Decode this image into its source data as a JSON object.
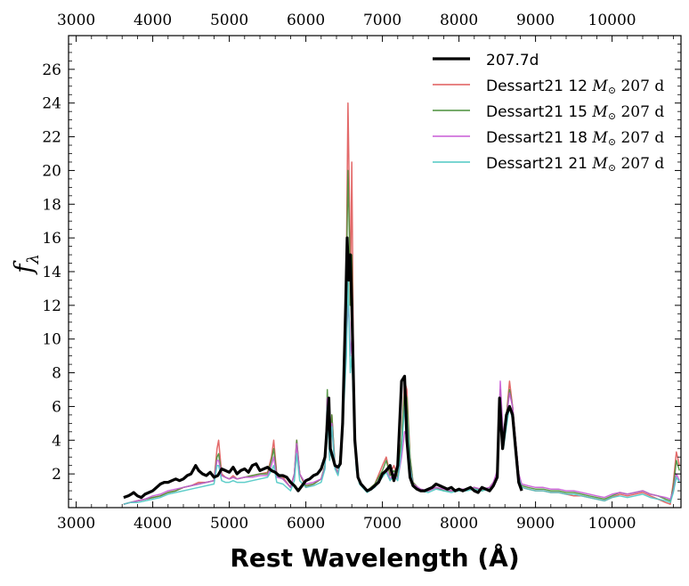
{
  "chart_data": {
    "type": "line",
    "title": "",
    "xlabel": "Rest Wavelength (Å)",
    "ylabel": "f",
    "ylabel_sub": "λ",
    "xlim": [
      2900,
      10900
    ],
    "ylim": [
      0,
      28
    ],
    "x_ticks": [
      3000,
      4000,
      5000,
      6000,
      7000,
      8000,
      9000,
      10000
    ],
    "x_tick_labels": [
      "3000",
      "4000",
      "5000",
      "6000",
      "7000",
      "8000",
      "9000",
      "10000"
    ],
    "y_ticks": [
      2,
      4,
      6,
      8,
      10,
      12,
      14,
      16,
      18,
      20,
      22,
      24,
      26
    ],
    "y_tick_labels": [
      "2",
      "4",
      "6",
      "8",
      "10",
      "12",
      "14",
      "16",
      "18",
      "20",
      "22",
      "24",
      "26"
    ],
    "legend": {
      "location": "top-right",
      "entries": [
        {
          "label": "207.7d",
          "series": "observed"
        },
        {
          "label_prefix": "Dessart21 12 ",
          "label_mass": "M",
          "label_sun": "⊙",
          "label_suffix": " 207 d",
          "series": "dessart12"
        },
        {
          "label_prefix": "Dessart21 15 ",
          "label_mass": "M",
          "label_sun": "⊙",
          "label_suffix": " 207 d",
          "series": "dessart15"
        },
        {
          "label_prefix": "Dessart21 18 ",
          "label_mass": "M",
          "label_sun": "⊙",
          "label_suffix": " 207 d",
          "series": "dessart18"
        },
        {
          "label_prefix": "Dessart21 21 ",
          "label_mass": "M",
          "label_sun": "⊙",
          "label_suffix": " 207 d",
          "series": "dessart21"
        }
      ]
    },
    "series": [
      {
        "id": "observed",
        "name": "207.7d",
        "color": "#000000",
        "width": 3.2,
        "x": [
          3620,
          3680,
          3720,
          3750,
          3800,
          3850,
          3900,
          3950,
          4000,
          4050,
          4100,
          4150,
          4200,
          4250,
          4300,
          4350,
          4400,
          4450,
          4500,
          4560,
          4600,
          4650,
          4700,
          4750,
          4800,
          4850,
          4900,
          4950,
          5000,
          5050,
          5100,
          5150,
          5200,
          5250,
          5300,
          5350,
          5400,
          5450,
          5500,
          5550,
          5600,
          5650,
          5700,
          5750,
          5800,
          5850,
          5900,
          5950,
          6000,
          6050,
          6100,
          6150,
          6200,
          6250,
          6280,
          6300,
          6320,
          6350,
          6380,
          6420,
          6450,
          6480,
          6520,
          6540,
          6560,
          6580,
          6600,
          6620,
          6640,
          6680,
          6720,
          6760,
          6800,
          6850,
          6900,
          6950,
          7000,
          7050,
          7100,
          7150,
          7200,
          7250,
          7290,
          7320,
          7360,
          7400,
          7450,
          7500,
          7550,
          7600,
          7650,
          7700,
          7750,
          7800,
          7850,
          7900,
          7950,
          8000,
          8050,
          8100,
          8150,
          8200,
          8250,
          8300,
          8350,
          8400,
          8450,
          8500,
          8530,
          8570,
          8620,
          8660,
          8700,
          8740,
          8780,
          8820
        ],
        "y": [
          0.6,
          0.7,
          0.8,
          0.9,
          0.7,
          0.6,
          0.8,
          0.9,
          1.0,
          1.2,
          1.4,
          1.5,
          1.5,
          1.6,
          1.7,
          1.6,
          1.7,
          1.9,
          2.0,
          2.5,
          2.2,
          2.0,
          1.9,
          2.1,
          1.8,
          1.9,
          2.3,
          2.2,
          2.1,
          2.4,
          2.0,
          2.2,
          2.3,
          2.1,
          2.5,
          2.6,
          2.2,
          2.3,
          2.4,
          2.2,
          2.1,
          1.9,
          1.9,
          1.8,
          1.5,
          1.3,
          1.0,
          1.3,
          1.6,
          1.7,
          1.9,
          2.0,
          2.3,
          3.0,
          5.0,
          6.5,
          3.5,
          3.0,
          2.5,
          2.4,
          2.6,
          5.0,
          12.0,
          16.0,
          13.5,
          15.0,
          12.0,
          8.0,
          4.0,
          1.8,
          1.4,
          1.2,
          1.0,
          1.1,
          1.3,
          1.5,
          2.0,
          2.2,
          2.5,
          1.6,
          2.5,
          7.5,
          7.8,
          4.0,
          1.8,
          1.3,
          1.1,
          1.0,
          1.0,
          1.1,
          1.2,
          1.4,
          1.3,
          1.2,
          1.1,
          1.2,
          1.0,
          1.1,
          1.0,
          1.1,
          1.2,
          1.0,
          0.9,
          1.2,
          1.1,
          1.0,
          1.3,
          1.8,
          6.5,
          3.5,
          5.5,
          6.0,
          5.5,
          3.5,
          1.5,
          1.0
        ]
      },
      {
        "id": "dessart12",
        "name": "Dessart21 12 M⊙ 207 d",
        "color": "#e05a5a",
        "width": 1.5,
        "x": [
          3620,
          3700,
          3800,
          3900,
          4000,
          4100,
          4200,
          4300,
          4400,
          4500,
          4600,
          4700,
          4800,
          4840,
          4860,
          4900,
          4950,
          5000,
          5050,
          5100,
          5200,
          5300,
          5400,
          5500,
          5550,
          5580,
          5620,
          5700,
          5800,
          5850,
          5880,
          5920,
          6000,
          6100,
          6200,
          6250,
          6280,
          6310,
          6340,
          6380,
          6420,
          6460,
          6500,
          6530,
          6550,
          6570,
          6580,
          6600,
          6620,
          6640,
          6660,
          6700,
          6800,
          6900,
          7000,
          7050,
          7100,
          7150,
          7200,
          7250,
          7290,
          7320,
          7360,
          7400,
          7500,
          7600,
          7700,
          7800,
          7900,
          8000,
          8100,
          8200,
          8300,
          8400,
          8450,
          8500,
          8540,
          8580,
          8620,
          8660,
          8700,
          8740,
          8780,
          8820,
          8900,
          9000,
          9100,
          9200,
          9300,
          9400,
          9500,
          9600,
          9700,
          9800,
          9900,
          10000,
          10100,
          10200,
          10300,
          10400,
          10500,
          10600,
          10700,
          10760,
          10800,
          10840,
          10880
        ],
        "y": [
          0.2,
          0.3,
          0.4,
          0.5,
          0.6,
          0.7,
          0.9,
          1.0,
          1.2,
          1.3,
          1.5,
          1.5,
          1.6,
          3.5,
          4.0,
          2.0,
          1.8,
          1.7,
          1.9,
          1.7,
          1.8,
          1.9,
          2.0,
          2.1,
          3.0,
          4.0,
          2.0,
          1.8,
          1.2,
          2.0,
          4.0,
          2.0,
          1.2,
          1.4,
          1.7,
          2.5,
          6.5,
          3.0,
          5.5,
          2.5,
          2.0,
          3.5,
          8.0,
          15.0,
          24.0,
          18.0,
          12.0,
          20.5,
          10.0,
          5.0,
          2.5,
          1.5,
          1.0,
          1.4,
          2.5,
          3.0,
          2.0,
          2.5,
          1.8,
          4.0,
          7.5,
          7.0,
          3.0,
          1.5,
          1.0,
          1.0,
          1.2,
          1.0,
          1.0,
          1.0,
          1.1,
          1.2,
          1.0,
          1.2,
          1.5,
          2.0,
          6.5,
          4.0,
          5.5,
          7.5,
          6.0,
          4.0,
          2.0,
          1.2,
          1.1,
          1.0,
          1.0,
          0.9,
          0.9,
          0.8,
          0.7,
          0.7,
          0.6,
          0.5,
          0.4,
          0.6,
          0.8,
          0.7,
          0.8,
          0.9,
          0.7,
          0.5,
          0.3,
          0.2,
          1.5,
          3.3,
          2.5
        ]
      },
      {
        "id": "dessart15",
        "name": "Dessart21 15 M⊙ 207 d",
        "color": "#4a8f3a",
        "width": 1.5,
        "x": [
          3620,
          3700,
          3800,
          3900,
          4000,
          4100,
          4200,
          4300,
          4400,
          4500,
          4600,
          4700,
          4800,
          4840,
          4860,
          4900,
          4950,
          5000,
          5050,
          5100,
          5200,
          5300,
          5400,
          5500,
          5550,
          5580,
          5620,
          5700,
          5800,
          5850,
          5880,
          5920,
          6000,
          6100,
          6200,
          6250,
          6280,
          6310,
          6340,
          6380,
          6420,
          6460,
          6500,
          6530,
          6550,
          6570,
          6580,
          6600,
          6620,
          6640,
          6660,
          6700,
          6800,
          6900,
          7000,
          7050,
          7100,
          7150,
          7200,
          7250,
          7290,
          7320,
          7360,
          7400,
          7500,
          7600,
          7700,
          7800,
          7900,
          8000,
          8100,
          8200,
          8300,
          8400,
          8450,
          8500,
          8540,
          8580,
          8620,
          8660,
          8700,
          8740,
          8780,
          8820,
          8900,
          9000,
          9100,
          9200,
          9300,
          9400,
          9500,
          9600,
          9700,
          9800,
          9900,
          10000,
          10100,
          10200,
          10300,
          10400,
          10500,
          10600,
          10700,
          10760,
          10800,
          10840,
          10880
        ],
        "y": [
          0.2,
          0.3,
          0.4,
          0.5,
          0.6,
          0.7,
          0.9,
          1.0,
          1.2,
          1.3,
          1.4,
          1.5,
          1.6,
          3.0,
          3.2,
          1.9,
          1.8,
          1.7,
          1.8,
          1.7,
          1.8,
          1.9,
          2.0,
          2.0,
          2.8,
          3.5,
          1.9,
          1.7,
          1.2,
          2.0,
          4.0,
          2.0,
          1.3,
          1.4,
          1.7,
          2.5,
          7.0,
          3.2,
          5.5,
          2.5,
          2.0,
          3.5,
          8.0,
          14.0,
          20.0,
          16.0,
          12.0,
          15.0,
          9.0,
          4.5,
          2.5,
          1.5,
          1.0,
          1.4,
          2.2,
          2.8,
          1.9,
          2.2,
          1.8,
          4.0,
          7.0,
          6.5,
          3.0,
          1.5,
          1.0,
          1.0,
          1.2,
          1.0,
          1.0,
          1.0,
          1.1,
          1.2,
          1.0,
          1.2,
          1.5,
          2.0,
          7.0,
          4.0,
          5.5,
          7.0,
          6.0,
          4.0,
          2.0,
          1.3,
          1.2,
          1.1,
          1.1,
          1.0,
          1.0,
          0.9,
          0.9,
          0.8,
          0.7,
          0.6,
          0.5,
          0.7,
          0.9,
          0.8,
          0.9,
          1.0,
          0.8,
          0.7,
          0.5,
          0.4,
          1.2,
          2.8,
          2.2
        ]
      },
      {
        "id": "dessart18",
        "name": "Dessart21 18 M⊙ 207 d",
        "color": "#c95bd6",
        "width": 1.5,
        "x": [
          3620,
          3700,
          3800,
          3900,
          4000,
          4100,
          4200,
          4300,
          4400,
          4500,
          4600,
          4700,
          4800,
          4840,
          4860,
          4900,
          4950,
          5000,
          5050,
          5100,
          5200,
          5300,
          5400,
          5500,
          5550,
          5580,
          5620,
          5700,
          5800,
          5850,
          5880,
          5920,
          6000,
          6100,
          6200,
          6250,
          6280,
          6310,
          6340,
          6380,
          6420,
          6460,
          6500,
          6530,
          6550,
          6570,
          6580,
          6600,
          6620,
          6640,
          6660,
          6700,
          6800,
          6900,
          7000,
          7050,
          7100,
          7150,
          7200,
          7250,
          7290,
          7320,
          7360,
          7400,
          7500,
          7600,
          7700,
          7800,
          7900,
          8000,
          8100,
          8200,
          8300,
          8400,
          8450,
          8500,
          8540,
          8580,
          8620,
          8660,
          8700,
          8740,
          8780,
          8820,
          8900,
          9000,
          9100,
          9200,
          9300,
          9400,
          9500,
          9600,
          9700,
          9800,
          9900,
          10000,
          10100,
          10200,
          10300,
          10400,
          10500,
          10600,
          10700,
          10760,
          10800,
          10840,
          10880
        ],
        "y": [
          0.2,
          0.3,
          0.4,
          0.5,
          0.7,
          0.8,
          1.0,
          1.1,
          1.2,
          1.3,
          1.4,
          1.5,
          1.6,
          2.8,
          2.8,
          1.9,
          1.8,
          1.7,
          1.8,
          1.7,
          1.8,
          1.8,
          1.9,
          1.9,
          2.5,
          3.0,
          1.8,
          1.7,
          1.2,
          2.0,
          3.8,
          2.0,
          1.4,
          1.5,
          1.7,
          2.4,
          6.5,
          3.0,
          5.0,
          2.4,
          2.0,
          3.2,
          7.0,
          10.0,
          12.0,
          11.0,
          9.0,
          10.0,
          7.0,
          4.0,
          2.3,
          1.5,
          1.0,
          1.3,
          1.9,
          2.3,
          1.7,
          2.0,
          1.7,
          3.0,
          4.5,
          4.3,
          2.5,
          1.4,
          1.1,
          1.0,
          1.2,
          1.1,
          1.0,
          1.1,
          1.1,
          1.2,
          1.1,
          1.2,
          1.5,
          2.2,
          7.5,
          4.0,
          5.3,
          6.8,
          6.0,
          4.0,
          2.0,
          1.4,
          1.3,
          1.2,
          1.2,
          1.1,
          1.1,
          1.0,
          1.0,
          0.9,
          0.8,
          0.7,
          0.6,
          0.8,
          0.9,
          0.8,
          0.9,
          1.0,
          0.8,
          0.7,
          0.6,
          0.5,
          1.0,
          2.0,
          1.6
        ]
      },
      {
        "id": "dessart21",
        "name": "Dessart21 21 M⊙ 207 d",
        "color": "#4fc9c4",
        "width": 1.5,
        "x": [
          3620,
          3700,
          3800,
          3900,
          4000,
          4100,
          4200,
          4300,
          4400,
          4500,
          4600,
          4700,
          4800,
          4840,
          4860,
          4900,
          4950,
          5000,
          5050,
          5100,
          5200,
          5300,
          5400,
          5500,
          5550,
          5580,
          5620,
          5700,
          5800,
          5850,
          5880,
          5920,
          6000,
          6100,
          6200,
          6250,
          6280,
          6310,
          6340,
          6380,
          6420,
          6460,
          6500,
          6530,
          6550,
          6570,
          6580,
          6600,
          6620,
          6640,
          6660,
          6700,
          6800,
          6900,
          7000,
          7050,
          7100,
          7150,
          7200,
          7250,
          7290,
          7320,
          7360,
          7400,
          7500,
          7600,
          7700,
          7800,
          7900,
          8000,
          8100,
          8200,
          8300,
          8400,
          8450,
          8500,
          8540,
          8580,
          8620,
          8660,
          8700,
          8740,
          8780,
          8820,
          8900,
          9000,
          9100,
          9200,
          9300,
          9400,
          9500,
          9600,
          9700,
          9800,
          9900,
          10000,
          10100,
          10200,
          10300,
          10400,
          10500,
          10600,
          10700,
          10760,
          10800,
          10840,
          10880
        ],
        "y": [
          0.2,
          0.3,
          0.3,
          0.4,
          0.5,
          0.6,
          0.8,
          0.9,
          1.0,
          1.1,
          1.2,
          1.3,
          1.4,
          2.5,
          2.5,
          1.6,
          1.5,
          1.5,
          1.6,
          1.5,
          1.5,
          1.6,
          1.7,
          1.8,
          2.2,
          2.5,
          1.5,
          1.4,
          1.0,
          1.6,
          3.2,
          1.6,
          1.2,
          1.3,
          1.5,
          2.3,
          6.0,
          2.8,
          4.8,
          2.3,
          1.9,
          3.0,
          6.5,
          9.0,
          14.0,
          10.0,
          8.0,
          9.0,
          6.5,
          3.8,
          2.2,
          1.4,
          0.9,
          1.2,
          1.8,
          2.1,
          1.6,
          1.9,
          1.6,
          3.5,
          6.0,
          5.5,
          2.5,
          1.3,
          1.0,
          0.9,
          1.1,
          1.0,
          0.9,
          1.0,
          1.0,
          1.1,
          1.0,
          1.1,
          1.3,
          1.8,
          6.0,
          3.5,
          4.8,
          6.0,
          5.2,
          3.5,
          1.8,
          1.2,
          1.1,
          1.0,
          1.0,
          0.9,
          0.9,
          0.8,
          0.8,
          0.7,
          0.6,
          0.5,
          0.4,
          0.6,
          0.7,
          0.6,
          0.7,
          0.8,
          0.6,
          0.5,
          0.4,
          0.3,
          0.9,
          1.8,
          1.5
        ]
      }
    ]
  }
}
